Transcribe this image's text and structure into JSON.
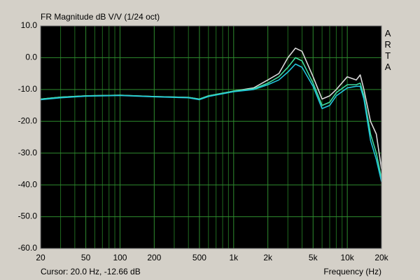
{
  "chart_data": {
    "type": "line",
    "title": "FR Magnitude dB V/V (1/24 oct)",
    "x_label": "Frequency (Hz)",
    "cursor": "Cursor: 20.0 Hz, -12.66 dB",
    "watermark": "ARTA",
    "log_x": true,
    "grid": true,
    "xlim": [
      20,
      20000
    ],
    "ylim": [
      -60,
      10
    ],
    "xticks": [
      20,
      50,
      100,
      200,
      500,
      {
        "value": 1000,
        "label": "1k"
      },
      {
        "value": 2000,
        "label": "2k"
      },
      {
        "value": 5000,
        "label": "5k"
      },
      {
        "value": 10000,
        "label": "10k"
      },
      {
        "value": 20000,
        "label": "20k"
      }
    ],
    "x_minor_grid": [
      30,
      40,
      60,
      70,
      80,
      90,
      300,
      400,
      600,
      700,
      800,
      900,
      3000,
      4000,
      6000,
      7000,
      8000,
      9000
    ],
    "yticks": [
      {
        "value": 10,
        "label": "10.0"
      },
      {
        "value": 0,
        "label": "0.0"
      },
      {
        "value": -10,
        "label": "-10.0"
      },
      {
        "value": -20,
        "label": "-20.0"
      },
      {
        "value": -30,
        "label": "-30.0"
      },
      {
        "value": -40,
        "label": "-40.0"
      },
      {
        "value": -50,
        "label": "-50.0"
      },
      {
        "value": -60,
        "label": "-60.0"
      }
    ],
    "x": [
      20,
      30,
      50,
      100,
      200,
      400,
      500,
      600,
      1000,
      1500,
      2000,
      2500,
      3000,
      3500,
      4000,
      5000,
      6000,
      7000,
      8000,
      10000,
      12000,
      13000,
      14000,
      16000,
      18000,
      20000
    ],
    "series": [
      {
        "color": "#d8d8d8",
        "values": [
          -13,
          -12.4,
          -12,
          -11.8,
          -12.2,
          -12.5,
          -13,
          -12,
          -10.5,
          -9.5,
          -7,
          -5,
          0,
          3,
          2,
          -6,
          -13,
          -12,
          -10,
          -6,
          -7,
          -5.4,
          -10,
          -20,
          -24,
          -35
        ]
      },
      {
        "color": "#3fdc9c",
        "values": [
          -13,
          -12.4,
          -12,
          -11.8,
          -12.2,
          -12.5,
          -13,
          -12,
          -10.5,
          -9.8,
          -8,
          -6,
          -3,
          0,
          -1,
          -8,
          -15,
          -14,
          -11,
          -8.5,
          -8.5,
          -8,
          -12,
          -24,
          -30,
          -38
        ]
      },
      {
        "color": "#22c6dc",
        "values": [
          -13.2,
          -12.6,
          -12.1,
          -11.9,
          -12.3,
          -12.6,
          -13.2,
          -12.2,
          -10.7,
          -10,
          -8.5,
          -7,
          -4.5,
          -2,
          -3,
          -9,
          -16,
          -15,
          -12,
          -9.5,
          -9,
          -9,
          -13,
          -26,
          -32,
          -39
        ]
      }
    ]
  }
}
